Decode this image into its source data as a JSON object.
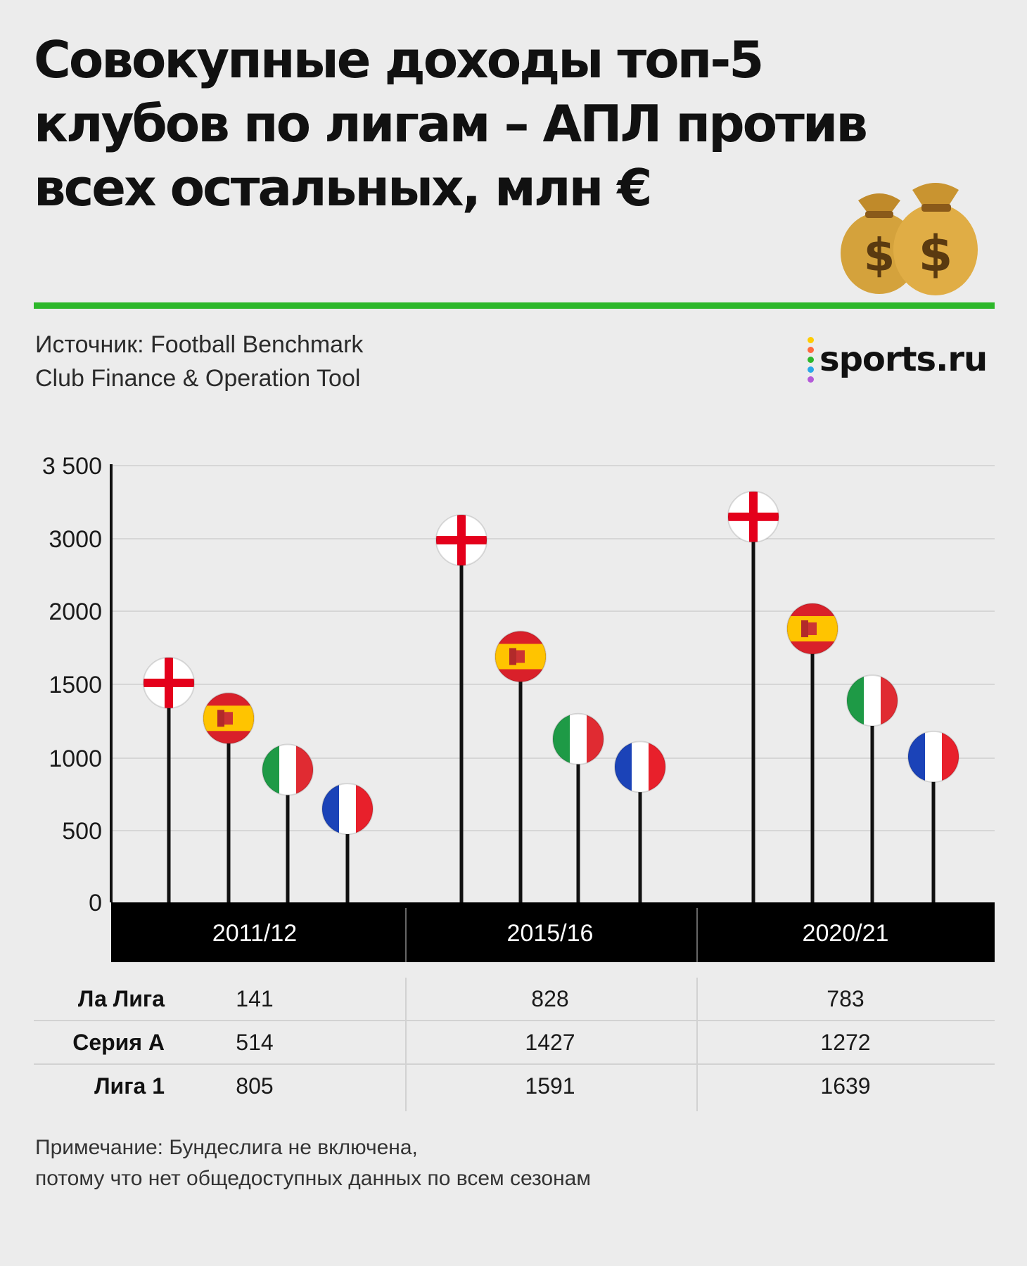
{
  "header": {
    "title": "Совокупные доходы топ-5 клубов по лигам – АПЛ против всех остальных, млн €",
    "source_line1": "Источник: Football Benchmark",
    "source_line2": "Club Finance & Operation Tool",
    "logo_text": "sports.ru",
    "accent_color": "#2db72a"
  },
  "chart_data": {
    "type": "bar",
    "title": "Совокупные доходы топ-5 клубов по лигам – АПЛ против всех остальных, млн €",
    "categories": [
      "2011/12",
      "2015/16",
      "2020/21"
    ],
    "y_ticks": [
      "0",
      "500",
      "1000",
      "1500",
      "2000",
      "3000",
      "3 500"
    ],
    "y_tick_values": [
      0,
      500,
      1000,
      1500,
      2000,
      3000,
      3500
    ],
    "ylim": [
      0,
      3500
    ],
    "grid": true,
    "series": [
      {
        "flag": "england",
        "values": [
          1510,
          2980,
          3150
        ]
      },
      {
        "flag": "spain",
        "values": [
          1270,
          1690,
          1880
        ]
      },
      {
        "flag": "italy",
        "values": [
          920,
          1130,
          1390
        ]
      },
      {
        "flag": "france",
        "values": [
          650,
          940,
          1010
        ]
      }
    ]
  },
  "table": {
    "rows": [
      {
        "label": "Ла Лига",
        "values": [
          "141",
          "828",
          "783"
        ]
      },
      {
        "label": "Серия А",
        "values": [
          "514",
          "1427",
          "1272"
        ]
      },
      {
        "label": "Лига 1",
        "values": [
          "805",
          "1591",
          "1639"
        ]
      }
    ]
  },
  "note": {
    "line1": "Примечание: Бундеслига не включена,",
    "line2": "потому что нет общедоступных данных по всем сезонам"
  }
}
